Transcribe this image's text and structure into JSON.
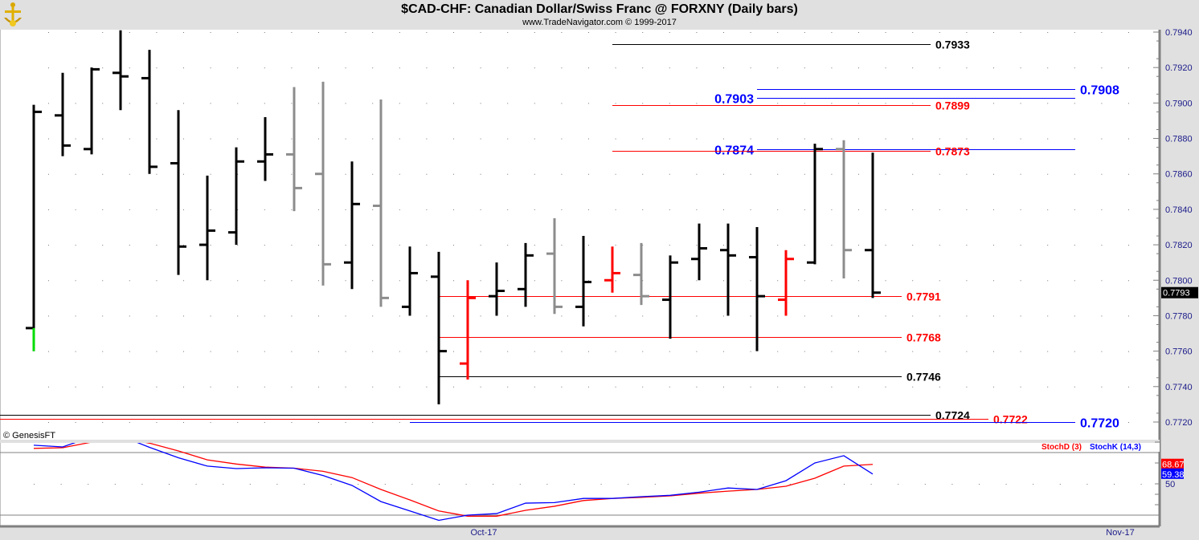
{
  "header": {
    "title": "$CAD-CHF:  Canadian Dollar/Swiss Franc @ FORXNY  (Daily bars)",
    "subtitle": "www.TradeNavigator.com © 1999-2017",
    "logo_icon": "anchor-icon"
  },
  "copyright": "© GenesisFT",
  "colors": {
    "up_black": "#000000",
    "grey": "#8c8c8c",
    "red": "#ff0000",
    "blue": "#0000ff",
    "green": "#00dd00"
  },
  "chart_data": [
    {
      "type": "ohlc",
      "title": "$CAD-CHF:  Canadian Dollar/Swiss Franc @ FORXNY  (Daily bars)",
      "ylim": [
        0.7711,
        0.7941
      ],
      "yticks": [
        "0.7940",
        "0.7920",
        "0.7900",
        "0.7880",
        "0.7860",
        "0.7840",
        "0.7820",
        "0.7800",
        "0.7780",
        "0.7760",
        "0.7740",
        "0.7720"
      ],
      "xlabels": [
        {
          "label": "Oct-17",
          "bar": 15
        },
        {
          "label": "Nov-17",
          "bar": 37
        }
      ],
      "last_price": "0.7793",
      "bars": [
        {
          "o": 0.7773,
          "h": 0.7899,
          "l": 0.776,
          "c": 0.7895,
          "color": "black"
        },
        {
          "o": 0.7893,
          "h": 0.7917,
          "l": 0.787,
          "c": 0.7876,
          "color": "black"
        },
        {
          "o": 0.7874,
          "h": 0.792,
          "l": 0.7871,
          "c": 0.7919,
          "color": "black"
        },
        {
          "o": 0.7917,
          "h": 0.7941,
          "l": 0.7896,
          "c": 0.7915,
          "color": "black"
        },
        {
          "o": 0.7914,
          "h": 0.793,
          "l": 0.786,
          "c": 0.7864,
          "color": "black"
        },
        {
          "o": 0.7866,
          "h": 0.7896,
          "l": 0.7803,
          "c": 0.7819,
          "color": "black"
        },
        {
          "o": 0.782,
          "h": 0.7859,
          "l": 0.78,
          "c": 0.7828,
          "color": "black"
        },
        {
          "o": 0.7827,
          "h": 0.7875,
          "l": 0.782,
          "c": 0.7867,
          "color": "black"
        },
        {
          "o": 0.7867,
          "h": 0.7892,
          "l": 0.7856,
          "c": 0.7871,
          "color": "black"
        },
        {
          "o": 0.7871,
          "h": 0.7909,
          "l": 0.7839,
          "c": 0.7852,
          "color": "grey"
        },
        {
          "o": 0.786,
          "h": 0.7912,
          "l": 0.7797,
          "c": 0.7809,
          "color": "grey"
        },
        {
          "o": 0.781,
          "h": 0.7867,
          "l": 0.7795,
          "c": 0.7843,
          "color": "black"
        },
        {
          "o": 0.7842,
          "h": 0.7902,
          "l": 0.7785,
          "c": 0.779,
          "color": "grey"
        },
        {
          "o": 0.7785,
          "h": 0.7819,
          "l": 0.778,
          "c": 0.7804,
          "color": "black"
        },
        {
          "o": 0.7802,
          "h": 0.7816,
          "l": 0.773,
          "c": 0.776,
          "color": "black"
        },
        {
          "o": 0.7753,
          "h": 0.78,
          "l": 0.7744,
          "c": 0.779,
          "color": "red"
        },
        {
          "o": 0.7791,
          "h": 0.781,
          "l": 0.778,
          "c": 0.7794,
          "color": "black"
        },
        {
          "o": 0.7795,
          "h": 0.7821,
          "l": 0.7785,
          "c": 0.7814,
          "color": "black"
        },
        {
          "o": 0.7815,
          "h": 0.7835,
          "l": 0.7781,
          "c": 0.7785,
          "color": "grey"
        },
        {
          "o": 0.7785,
          "h": 0.7825,
          "l": 0.7774,
          "c": 0.7799,
          "color": "black"
        },
        {
          "o": 0.78,
          "h": 0.7819,
          "l": 0.7793,
          "c": 0.7804,
          "color": "red"
        },
        {
          "o": 0.7803,
          "h": 0.7821,
          "l": 0.7786,
          "c": 0.7791,
          "color": "grey"
        },
        {
          "o": 0.7789,
          "h": 0.7814,
          "l": 0.7767,
          "c": 0.781,
          "color": "black"
        },
        {
          "o": 0.7812,
          "h": 0.7832,
          "l": 0.78,
          "c": 0.7818,
          "color": "black"
        },
        {
          "o": 0.7817,
          "h": 0.7832,
          "l": 0.778,
          "c": 0.7814,
          "color": "black"
        },
        {
          "o": 0.7813,
          "h": 0.783,
          "l": 0.776,
          "c": 0.7791,
          "color": "black"
        },
        {
          "o": 0.7789,
          "h": 0.7817,
          "l": 0.778,
          "c": 0.7812,
          "color": "red"
        },
        {
          "o": 0.781,
          "h": 0.7877,
          "l": 0.7809,
          "c": 0.7874,
          "color": "black"
        },
        {
          "o": 0.7874,
          "h": 0.7879,
          "l": 0.7801,
          "c": 0.7817,
          "color": "grey"
        },
        {
          "o": 0.7817,
          "h": 0.7872,
          "l": 0.779,
          "c": 0.7793,
          "color": "black"
        }
      ],
      "levels": [
        {
          "price": 0.7933,
          "label": "0.7933",
          "color": "#000000",
          "from_bar": 20,
          "to_bar": 31,
          "label_side": "right",
          "size": "small"
        },
        {
          "price": 0.7908,
          "label": "0.7908",
          "color": "#0000ff",
          "from_bar": 25,
          "to_bar": 36,
          "label_side": "right",
          "size": "big"
        },
        {
          "price": 0.7903,
          "label": "0.7903",
          "color": "#0000ff",
          "from_bar": 25,
          "to_bar": 36,
          "label_side": "left",
          "size": "big"
        },
        {
          "price": 0.7899,
          "label": "0.7899",
          "color": "#ff0000",
          "from_bar": 20,
          "to_bar": 31,
          "label_side": "right",
          "size": "small"
        },
        {
          "price": 0.7874,
          "label": "0.7874",
          "color": "#0000ff",
          "from_bar": 25,
          "to_bar": 36,
          "label_side": "left",
          "size": "big"
        },
        {
          "price": 0.7873,
          "label": "0.7873",
          "color": "#ff0000",
          "from_bar": 20,
          "to_bar": 31,
          "label_side": "right",
          "size": "small"
        },
        {
          "price": 0.7791,
          "label": "0.7791",
          "color": "#ff0000",
          "from_bar": 14,
          "to_bar": 30,
          "label_side": "right",
          "size": "small"
        },
        {
          "price": 0.7768,
          "label": "0.7768",
          "color": "#ff0000",
          "from_bar": 14,
          "to_bar": 30,
          "label_side": "right",
          "size": "small"
        },
        {
          "price": 0.7746,
          "label": "0.7746",
          "color": "#000000",
          "from_bar": 14,
          "to_bar": 30,
          "label_side": "right",
          "size": "small"
        },
        {
          "price": 0.7724,
          "label": "0.7724",
          "color": "#000000",
          "from_bar": -1.2,
          "to_bar": 31,
          "label_side": "right",
          "size": "small"
        },
        {
          "price": 0.7722,
          "label": "0.7722",
          "color": "#ff0000",
          "from_bar": -1.2,
          "to_bar": 33,
          "label_side": "right",
          "size": "small"
        },
        {
          "price": 0.772,
          "label": "0.7720",
          "color": "#0000ff",
          "from_bar": 13,
          "to_bar": 36,
          "label_side": "right",
          "size": "big"
        }
      ]
    },
    {
      "type": "line",
      "title": "Stochastic",
      "ylim": [
        11,
        89
      ],
      "reference_lines": [
        80,
        20
      ],
      "ytick_label": "50",
      "series": [
        {
          "name": "StochD (3)",
          "color": "#ff0000",
          "last": "68.67",
          "values": [
            84,
            84.6,
            90,
            94,
            89,
            81.5,
            73,
            69,
            66,
            65,
            62,
            56,
            44.6,
            34.6,
            24,
            19,
            19,
            24.6,
            28.5,
            34,
            36,
            37,
            38.5,
            41,
            43,
            44.6,
            47.7,
            55.4,
            67,
            68.67
          ]
        },
        {
          "name": "StochK (14,3)",
          "color": "#0000ff",
          "last": "59.38",
          "values": [
            87,
            85.4,
            95,
            96,
            85,
            75,
            67,
            64.6,
            65.4,
            65,
            58,
            48.5,
            33,
            24,
            15,
            20,
            21.5,
            31.5,
            32,
            36,
            36,
            37.7,
            39,
            42,
            46,
            44.6,
            53,
            70,
            77,
            59.38
          ]
        }
      ]
    }
  ]
}
